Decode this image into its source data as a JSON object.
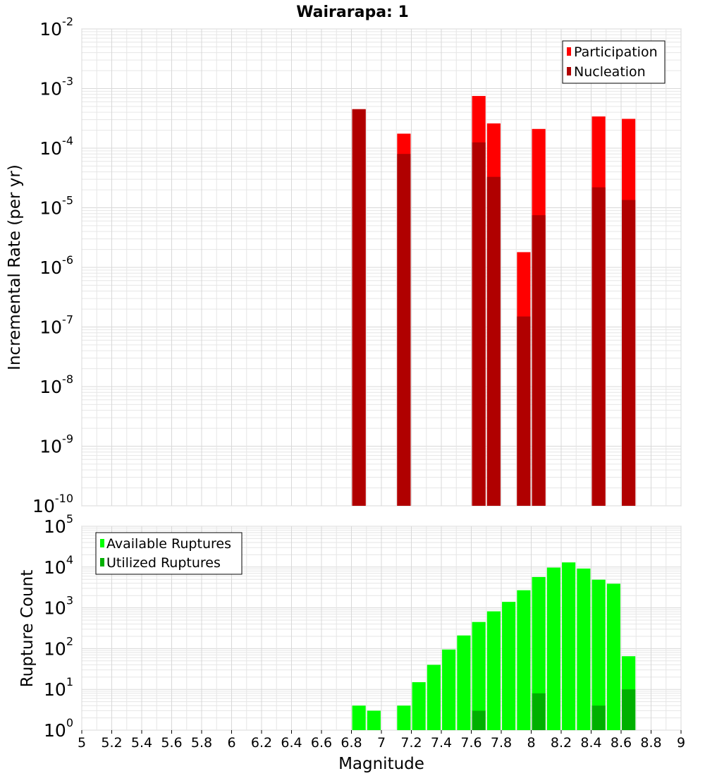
{
  "chart_data": [
    {
      "type": "bar",
      "title": "Wairarapa: 1",
      "xlabel": "",
      "ylabel": "Incremental Rate (per yr)",
      "yscale": "log",
      "ylim_exp": [
        -10,
        -2
      ],
      "xlim": [
        5,
        9
      ],
      "bar_width": 0.09,
      "legend_position": "top-right",
      "series": [
        {
          "name": "Participation",
          "color": "#ff0000",
          "x": [
            6.85,
            7.15,
            7.65,
            7.75,
            7.95,
            8.05,
            8.45,
            8.65
          ],
          "values": [
            0.00045,
            0.000175,
            0.00075,
            0.00026,
            1.8e-06,
            0.00021,
            0.00034,
            0.00031
          ]
        },
        {
          "name": "Nucleation",
          "color": "#b00000",
          "x": [
            6.85,
            7.15,
            7.65,
            7.75,
            7.95,
            8.05,
            8.45,
            8.65
          ],
          "values": [
            0.00045,
            8e-05,
            0.000125,
            3.3e-05,
            1.5e-07,
            7.5e-06,
            2.2e-05,
            1.35e-05
          ]
        }
      ]
    },
    {
      "type": "bar",
      "title": "",
      "xlabel": "Magnitude",
      "ylabel": "Rupture Count",
      "yscale": "log",
      "ylim_exp": [
        0,
        5
      ],
      "xlim": [
        5,
        9
      ],
      "bar_width": 0.09,
      "legend_position": "top-left",
      "x_ticks": [
        "5",
        "5.2",
        "5.4",
        "5.6",
        "5.8",
        "6",
        "6.2",
        "6.4",
        "6.6",
        "6.8",
        "7",
        "7.2",
        "7.4",
        "7.6",
        "7.8",
        "8",
        "8.2",
        "8.4",
        "8.6",
        "8.8",
        "9"
      ],
      "series": [
        {
          "name": "Available Ruptures",
          "color": "#00ff00",
          "x": [
            6.85,
            6.95,
            7.15,
            7.25,
            7.35,
            7.45,
            7.55,
            7.65,
            7.75,
            7.85,
            7.95,
            8.05,
            8.15,
            8.25,
            8.35,
            8.45,
            8.55,
            8.65
          ],
          "values": [
            4,
            3,
            4,
            15,
            40,
            95,
            210,
            450,
            820,
            1400,
            2700,
            5700,
            9700,
            13000,
            9200,
            4900,
            3900,
            65
          ]
        },
        {
          "name": "Utilized Ruptures",
          "color": "#00b000",
          "x": [
            6.85,
            7.15,
            7.65,
            7.75,
            7.95,
            8.05,
            8.45,
            8.65
          ],
          "values": [
            1,
            1,
            3,
            1,
            1,
            8,
            4,
            10
          ]
        }
      ]
    }
  ]
}
